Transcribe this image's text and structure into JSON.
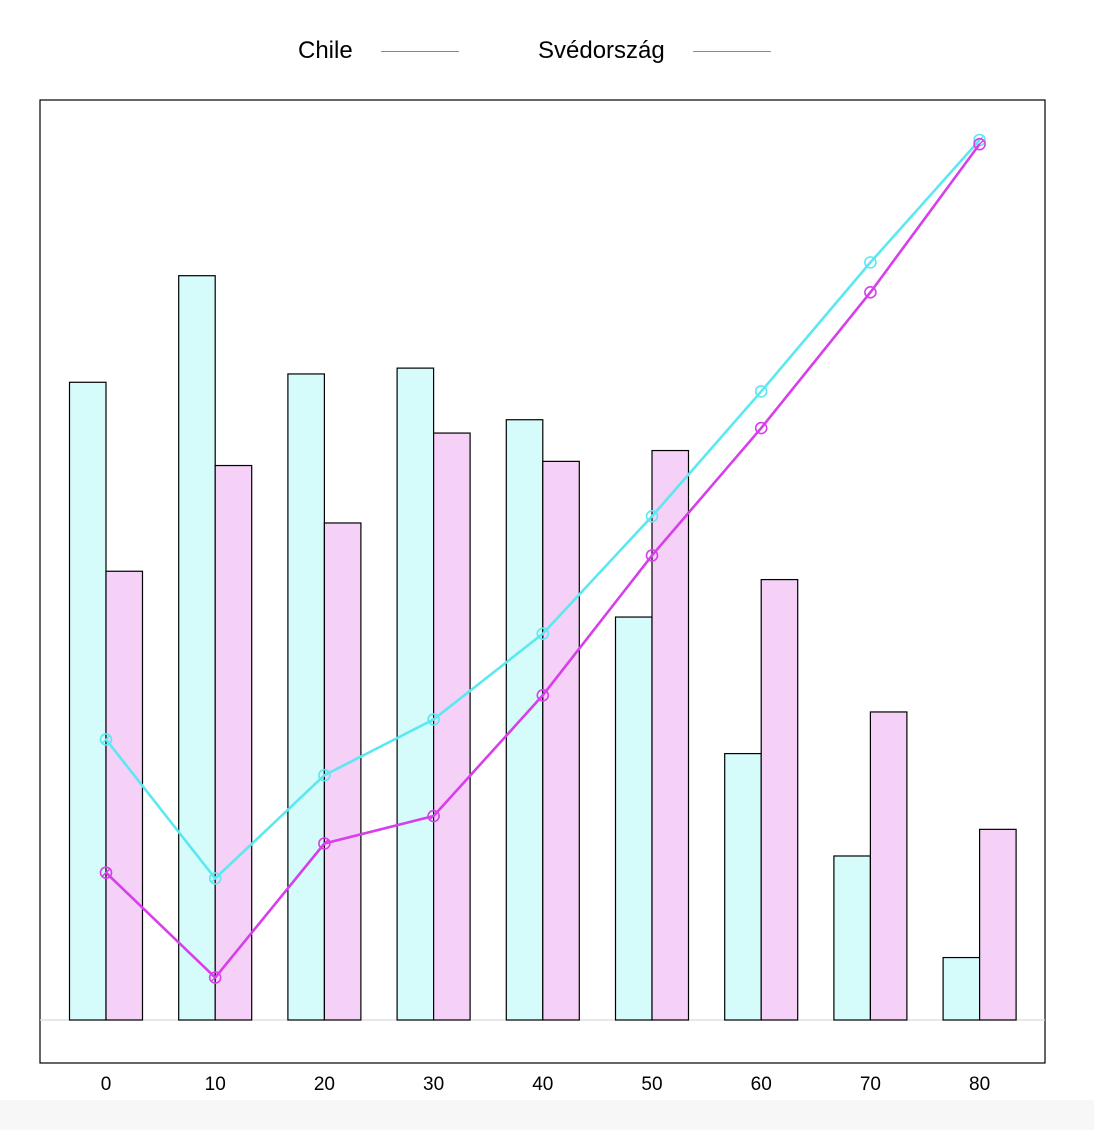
{
  "chart_data": {
    "type": "bar",
    "categories": [
      "0",
      "10",
      "20",
      "30",
      "40",
      "50",
      "60",
      "70",
      "80"
    ],
    "series": [
      {
        "name": "Chile",
        "kind": "bar",
        "values": [
          7.66,
          8.94,
          7.76,
          7.83,
          7.21,
          4.84,
          3.2,
          1.97,
          0.75
        ],
        "fill": "#d6fbfb",
        "stroke": "#000000"
      },
      {
        "name": "Svédország",
        "kind": "bar",
        "values": [
          5.39,
          6.66,
          5.97,
          7.05,
          6.71,
          6.84,
          5.29,
          3.7,
          2.29
        ],
        "fill": "#f5d0f7",
        "stroke": "#000000"
      },
      {
        "name": "Chile",
        "kind": "line",
        "values": [
          3.37,
          1.7,
          2.94,
          3.61,
          4.64,
          6.05,
          7.55,
          9.1,
          10.57
        ],
        "color": "#5ce8f0"
      },
      {
        "name": "Svédország",
        "kind": "line",
        "values": [
          1.77,
          0.51,
          2.12,
          2.45,
          3.9,
          5.58,
          7.11,
          8.74,
          10.52
        ],
        "color": "#d63fea"
      }
    ],
    "ylim": [
      -0.3,
      11.5
    ],
    "xlabel": "",
    "ylabel": "",
    "title": "",
    "legend": {
      "placement": "top-center",
      "entries": [
        {
          "name": "Chile",
          "color": "#4f8ff7"
        },
        {
          "name": "Svédország",
          "color": "#c55ae8"
        }
      ]
    },
    "grid": false,
    "colors": {
      "baseline": "#d9d9d9",
      "frame": "#000000"
    }
  }
}
